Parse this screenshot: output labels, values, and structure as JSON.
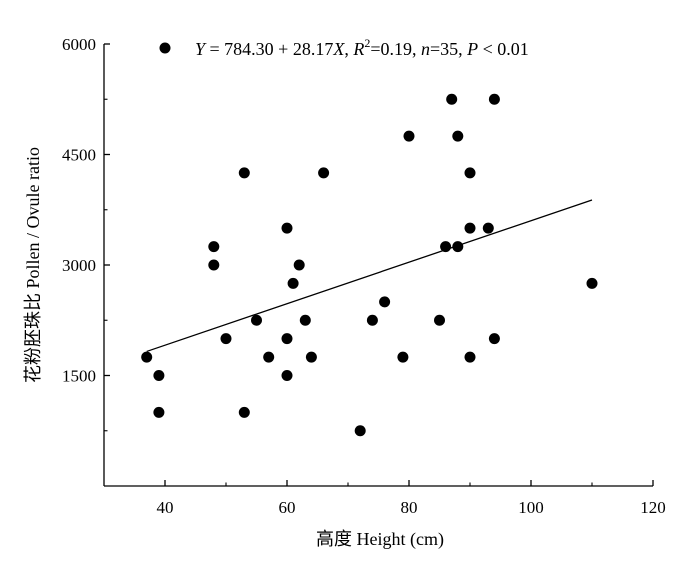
{
  "chart_data": {
    "type": "scatter",
    "title": "",
    "xlabel": "高度 Height (cm)",
    "ylabel": "花粉胚珠比 Pollen / Ovule ratio",
    "xlim": [
      30,
      120
    ],
    "ylim": [
      0,
      6000
    ],
    "xticks": [
      "40",
      "60",
      "80",
      "100",
      "120"
    ],
    "yticks": [
      "1500",
      "3000",
      "4500",
      "6000"
    ],
    "legend": {
      "position": "top",
      "text": "Y = 784.30 + 28.17X, R2=0.19, n=35, P < 0.01"
    },
    "series": [
      {
        "marker": "filled-circle",
        "color": "#000000",
        "points": [
          {
            "x": 37,
            "y": 1750
          },
          {
            "x": 39,
            "y": 1500
          },
          {
            "x": 39,
            "y": 1000
          },
          {
            "x": 48,
            "y": 3250
          },
          {
            "x": 48,
            "y": 3000
          },
          {
            "x": 50,
            "y": 2000
          },
          {
            "x": 53,
            "y": 4250
          },
          {
            "x": 53,
            "y": 1000
          },
          {
            "x": 55,
            "y": 2250
          },
          {
            "x": 57,
            "y": 1750
          },
          {
            "x": 60,
            "y": 3500
          },
          {
            "x": 60,
            "y": 2000
          },
          {
            "x": 60,
            "y": 1500
          },
          {
            "x": 61,
            "y": 2750
          },
          {
            "x": 62,
            "y": 3000
          },
          {
            "x": 63,
            "y": 2250
          },
          {
            "x": 64,
            "y": 1750
          },
          {
            "x": 66,
            "y": 4250
          },
          {
            "x": 72,
            "y": 750
          },
          {
            "x": 74,
            "y": 2250
          },
          {
            "x": 76,
            "y": 2500
          },
          {
            "x": 79,
            "y": 1750
          },
          {
            "x": 80,
            "y": 4750
          },
          {
            "x": 85,
            "y": 2250
          },
          {
            "x": 86,
            "y": 3250
          },
          {
            "x": 87,
            "y": 5250
          },
          {
            "x": 88,
            "y": 4750
          },
          {
            "x": 88,
            "y": 3250
          },
          {
            "x": 90,
            "y": 4250
          },
          {
            "x": 90,
            "y": 3500
          },
          {
            "x": 90,
            "y": 1750
          },
          {
            "x": 93,
            "y": 3500
          },
          {
            "x": 94,
            "y": 5250
          },
          {
            "x": 94,
            "y": 2000
          },
          {
            "x": 110,
            "y": 2750
          }
        ]
      }
    ],
    "regression": {
      "intercept": 784.3,
      "slope": 28.17,
      "x_range": [
        37,
        110
      ]
    }
  }
}
